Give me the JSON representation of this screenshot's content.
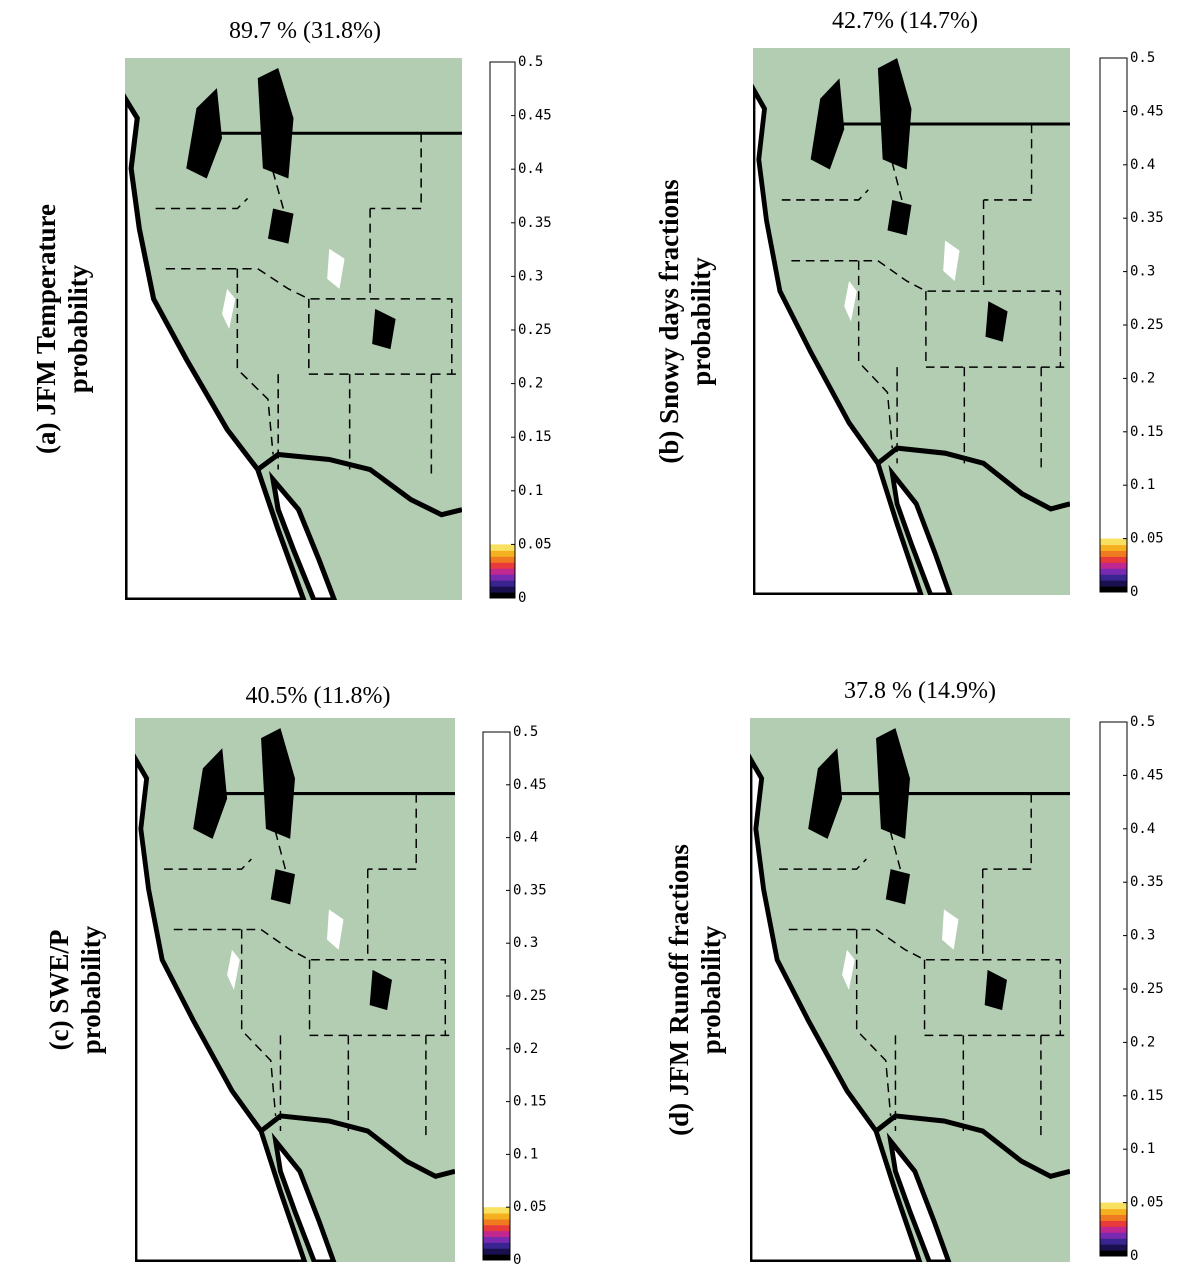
{
  "panels": [
    {
      "title": "89.7 % (31.8%)",
      "label_lines": [
        "(a) JFM Temperature",
        "probability"
      ],
      "colorbar": {
        "ticks": [
          0,
          0.05,
          0.1,
          0.15,
          0.2,
          0.25,
          0.3,
          0.35,
          0.4,
          0.45,
          0.5
        ]
      }
    },
    {
      "title": "42.7% (14.7%)",
      "label_lines": [
        "(b) Snowy days fractions",
        "probability"
      ],
      "colorbar": {
        "ticks": [
          0,
          0.05,
          0.1,
          0.15,
          0.2,
          0.25,
          0.3,
          0.35,
          0.4,
          0.45,
          0.5
        ]
      }
    },
    {
      "title": "40.5% (11.8%)",
      "label_lines": [
        "(c) SWE/P",
        "probability"
      ],
      "colorbar": {
        "ticks": [
          0,
          0.05,
          0.1,
          0.15,
          0.2,
          0.25,
          0.3,
          0.35,
          0.4,
          0.45,
          0.5
        ]
      }
    },
    {
      "title": "37.8 % (14.9%)",
      "label_lines": [
        "(d) JFM Runoff fractions",
        "probability"
      ],
      "colorbar": {
        "ticks": [
          0,
          0.05,
          0.1,
          0.15,
          0.2,
          0.25,
          0.3,
          0.35,
          0.4,
          0.45,
          0.5
        ]
      }
    }
  ]
}
